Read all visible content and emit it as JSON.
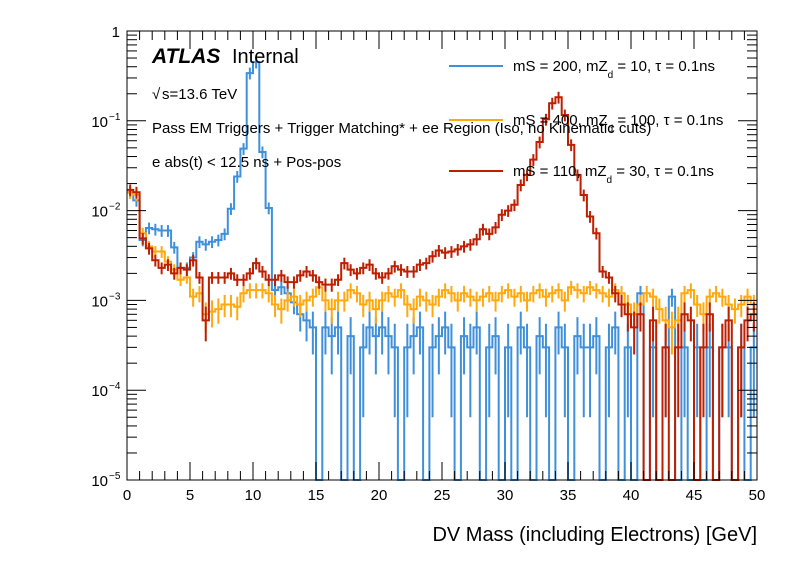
{
  "chart_data": {
    "type": "line",
    "style": "step-histogram",
    "title": "",
    "xlabel": "DV Mass (including Electrons) [GeV]",
    "ylabel": "",
    "xlim": [
      0,
      50
    ],
    "ylim": [
      1e-05,
      1
    ],
    "yscale": "log",
    "grid": false,
    "x_ticks": [
      "0",
      "5",
      "10",
      "15",
      "20",
      "25",
      "30",
      "35",
      "40",
      "45",
      "50"
    ],
    "y_ticks": [
      {
        "base": "10",
        "exp": "−5"
      },
      {
        "base": "10",
        "exp": "−4"
      },
      {
        "base": "10",
        "exp": "−3"
      },
      {
        "base": "10",
        "exp": "−2"
      },
      {
        "base": "10",
        "exp": "−1"
      },
      {
        "base": "1",
        "exp": ""
      }
    ],
    "annotations": {
      "atlas": "ATLAS",
      "internal": "Internal",
      "sqrt_symbol": "√",
      "energy": "s=13.6 TeV",
      "selection1": "Pass EM Triggers + Trigger Matching* + ee Region (Iso, no Kinematic cuts)",
      "selection2": "e abs(t) < 12.5 ns + Pos-pos"
    },
    "legend_position": "top-right",
    "bin_width": 0.5,
    "bin_start": 0,
    "series": [
      {
        "name": "mS = 200, mZd = 10, τ = 0.1ns",
        "label_pre": "mS = 200, mZ",
        "label_sub": "d",
        "label_post": " = 10, τ = 0.1ns",
        "color": "#3f90da",
        "values": [
          0.016,
          0.013,
          0.0047,
          0.0064,
          0.0062,
          0.006,
          0.006,
          0.0039,
          0.0023,
          0.0023,
          0.003,
          0.0045,
          0.0042,
          0.0045,
          0.0047,
          0.0055,
          0.0105,
          0.024,
          0.049,
          0.34,
          0.45,
          0.045,
          0.0107,
          0.0013,
          0.0014,
          0.0012,
          0.00095,
          0.0007,
          0.0006,
          0.0005,
          0,
          0.0005,
          0.0004,
          0.0005,
          0,
          0.0004,
          0,
          0.0003,
          0.0005,
          0.0004,
          0.0005,
          0.0004,
          0.0003,
          0,
          0.0003,
          0.0004,
          0.0005,
          0,
          0.0003,
          0.0004,
          0.0005,
          0.0003,
          0,
          0.0004,
          0.0003,
          0.0005,
          0,
          0.0003,
          0.0004,
          0,
          0.0003,
          0,
          0.0005,
          0.0003,
          0,
          0.0004,
          0.0003,
          0,
          0.0005,
          0.0003,
          0,
          0.0004,
          0.0003,
          0.0003,
          0.0004,
          0,
          0.0003,
          0.0005,
          0,
          0.0003,
          0,
          0.0012,
          0,
          0.0003,
          0,
          0.0003,
          0.0011,
          0,
          0.0003,
          0,
          0.0003,
          0,
          0.0003,
          0,
          0.0003,
          0.0003,
          0,
          0.0003,
          0,
          0.0003
        ]
      },
      {
        "name": "mS = 400, mZd = 100, τ = 0.1ns",
        "label_pre": "mS = 400, mZ",
        "label_sub": "d",
        "label_post": " = 100, τ = 0.1ns",
        "color": "#ffa90e",
        "values": [
          0.0158,
          0.015,
          0.0056,
          0.004,
          0.0035,
          0.0035,
          0.0027,
          0.0022,
          0.0017,
          0.0018,
          0.0011,
          0.0012,
          0.0007,
          0.00075,
          0.0008,
          0.0009,
          0.0009,
          0.00085,
          0.0012,
          0.0013,
          0.0013,
          0.0013,
          0.0012,
          0.0009,
          0.0008,
          0.001,
          0.0011,
          0.0009,
          0.001,
          0.0011,
          0.0014,
          0.001,
          0.0008,
          0.001,
          0.001,
          0.0013,
          0.0012,
          0.0009,
          0.001,
          0.0008,
          0.001,
          0.0012,
          0.0011,
          0.0013,
          0.0009,
          0.0008,
          0.0011,
          0.001,
          0.0009,
          0.0011,
          0.0013,
          0.0012,
          0.001,
          0.0012,
          0.0011,
          0.001,
          0.0011,
          0.0012,
          0.001,
          0.0012,
          0.0013,
          0.0011,
          0.0012,
          0.001,
          0.0012,
          0.0013,
          0.0011,
          0.0012,
          0.0013,
          0.001,
          0.0014,
          0.0013,
          0.0012,
          0.0014,
          0.0013,
          0.0012,
          0.0011,
          0.0013,
          0.0012,
          0.0009,
          0.0007,
          0.0009,
          0.0012,
          0.0011,
          0.0008,
          0.0006,
          0.0005,
          0.0006,
          0.0012,
          0.0013,
          0.0009,
          0.0007,
          0.0011,
          0.0012,
          0.0011,
          0.0009,
          0.0008,
          0.0009,
          0.0011,
          0.0009
        ]
      },
      {
        "name": "mS = 110, mZd = 30, τ = 0.1ns",
        "label_pre": "mS = 110, mZ",
        "label_sub": "d",
        "label_post": " = 30, τ = 0.1ns",
        "color": "#bd1f01",
        "values": [
          0.017,
          0.016,
          0.0049,
          0.0038,
          0.0028,
          0.0023,
          0.0025,
          0.002,
          0.0023,
          0.0022,
          0.0028,
          0.0018,
          0.0006,
          0.0018,
          0.0018,
          0.0018,
          0.002,
          0.0017,
          0.0017,
          0.002,
          0.0026,
          0.0021,
          0.0017,
          0.0017,
          0.0019,
          0.0016,
          0.0016,
          0.0019,
          0.0021,
          0.0019,
          0.0016,
          0.0015,
          0.0015,
          0.0017,
          0.0026,
          0.0022,
          0.002,
          0.0023,
          0.0025,
          0.002,
          0.0018,
          0.002,
          0.0024,
          0.0022,
          0.0021,
          0.0021,
          0.0025,
          0.0026,
          0.0031,
          0.0036,
          0.0034,
          0.0035,
          0.0037,
          0.004,
          0.0042,
          0.0048,
          0.0062,
          0.0055,
          0.0065,
          0.009,
          0.01,
          0.0116,
          0.0193,
          0.025,
          0.037,
          0.058,
          0.104,
          0.157,
          0.183,
          0.116,
          0.054,
          0.025,
          0.0149,
          0.0086,
          0.0056,
          0.0021,
          0.0018,
          0.0012,
          0.0009,
          0.0007,
          0.0005,
          0.0007,
          0,
          0.0006,
          0,
          0.0003,
          0,
          0.0003,
          0.0007,
          0.0006,
          0,
          0.0003,
          0.0007,
          0,
          0.0003,
          0.0006,
          0,
          0.0003,
          0.0006,
          0.0007
        ]
      }
    ]
  }
}
